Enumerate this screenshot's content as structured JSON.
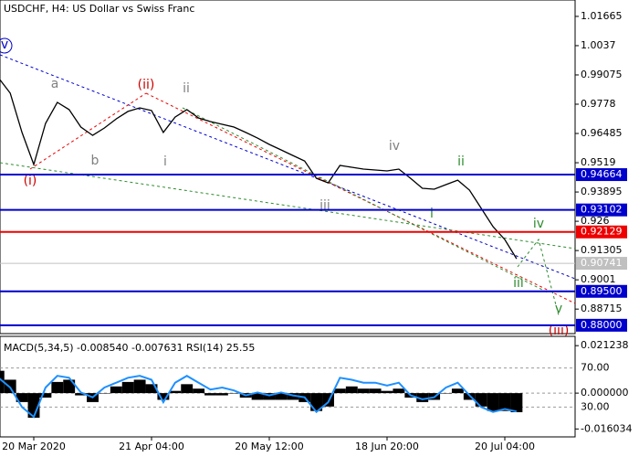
{
  "header": "USDCHF, H4:  US Dollar vs Swiss Franc",
  "chart_data": [
    {
      "type": "line",
      "categories": [
        null,
        null,
        null,
        "20 Mar 2020",
        null,
        null,
        null,
        null,
        null,
        null,
        null,
        null,
        null,
        "21 Apr 04:00",
        null,
        null,
        null,
        null,
        null,
        null,
        null,
        null,
        null,
        "20 May 12:00",
        null,
        null,
        null,
        null,
        null,
        null,
        null,
        null,
        null,
        "18 Jun 20:00",
        null,
        null,
        null,
        null,
        null,
        null,
        null,
        null,
        null,
        "20 Jul 04:00",
        null
      ],
      "values": [
        0.9895,
        0.9827,
        0.9653,
        0.9511,
        0.9693,
        0.9786,
        0.9754,
        0.9677,
        0.964,
        0.9673,
        0.9713,
        0.9746,
        0.9762,
        0.975,
        0.9653,
        0.9721,
        0.9754,
        0.9717,
        0.9701,
        0.9689,
        0.9677,
        0.9653,
        0.9628,
        0.96,
        0.9576,
        0.9551,
        0.9527,
        0.945,
        0.943,
        0.9507,
        0.9499,
        0.9491,
        0.9487,
        0.9483,
        0.9491,
        0.945,
        0.9406,
        0.9402,
        0.9422,
        0.9442,
        0.9398,
        0.9317,
        0.9236,
        0.9179,
        0.9094
      ],
      "color": "#000000",
      "ylim": [
        0.8763,
        1.0239
      ],
      "yticks": [
        1.01665,
        1.0037,
        0.99075,
        0.9778,
        0.96485,
        0.9519,
        0.93895,
        0.926,
        0.91305,
        0.9001,
        0.88715
      ],
      "levels": [
        {
          "value": 0.94664,
          "color": "#0000cc"
        },
        {
          "value": 0.93102,
          "color": "#0000cc"
        },
        {
          "value": 0.92129,
          "color": "#ee0000"
        },
        {
          "value": 0.90741,
          "color": "#c0c0c0"
        },
        {
          "value": 0.895,
          "label": "0.89500",
          "color": "#0000cc"
        },
        {
          "value": 0.88,
          "label": "0.88000",
          "color": "#0000cc"
        }
      ],
      "annotations": [
        {
          "text": "(i)",
          "color": "#cc0000"
        },
        {
          "text": "(ii)",
          "color": "#cc0000"
        },
        {
          "text": "(iii)",
          "color": "#cc0000"
        },
        {
          "text": "a",
          "color": "#808080"
        },
        {
          "text": "b",
          "color": "#808080"
        },
        {
          "text": "i",
          "color": "#808080"
        },
        {
          "text": "ii",
          "color": "#808080"
        },
        {
          "text": "iii",
          "color": "#808080"
        },
        {
          "text": "iv",
          "color": "#808080"
        },
        {
          "text": "i",
          "color": "#2e8b2e"
        },
        {
          "text": "ii",
          "color": "#2e8b2e"
        },
        {
          "text": "iii",
          "color": "#2e8b2e"
        },
        {
          "text": "iv",
          "color": "#2e8b2e"
        },
        {
          "text": "v",
          "color": "#2e8b2e"
        },
        {
          "text": "v",
          "color": "#0000cc"
        }
      ]
    },
    {
      "type": "macd",
      "title": "MACD(5,34,5) -0.008540 -0.007631 RSI(14) 25.55",
      "series": [
        {
          "color": "#000000",
          "values": [
            0.01,
            0.006,
            -0.004,
            -0.011,
            -0.002,
            0.005,
            0.006,
            -0.001,
            -0.004,
            0.0,
            0.003,
            0.005,
            0.006,
            0.004,
            -0.003,
            0.001,
            0.004,
            0.002,
            -0.001,
            -0.001,
            0.0,
            -0.002,
            -0.003,
            -0.003,
            -0.003,
            -0.003,
            -0.004,
            -0.008,
            -0.006,
            0.002,
            0.003,
            0.002,
            0.002,
            0.001,
            0.002,
            -0.002,
            -0.004,
            -0.003,
            0.0,
            0.002,
            -0.003,
            -0.006,
            -0.008,
            -0.008,
            -0.00854
          ]
        },
        {
          "color": "#1e90ff",
          "axis": "y2",
          "values": [
            60,
            50,
            30,
            20,
            50,
            62,
            60,
            45,
            40,
            50,
            55,
            60,
            62,
            58,
            35,
            55,
            62,
            55,
            48,
            50,
            47,
            42,
            45,
            42,
            45,
            42,
            40,
            25,
            35,
            60,
            58,
            55,
            55,
            52,
            55,
            42,
            38,
            40,
            50,
            55,
            42,
            30,
            25,
            28,
            25.55
          ]
        }
      ],
      "ylim": [
        -0.01958,
        0.0254
      ],
      "yticks": [
        0.021238,
        {
          "value": 0,
          "label": "0.000000"
        },
        -0.016034
      ],
      "y2lim": [
        -0.5,
        102.4
      ],
      "y2ticks": [
        {
          "value": 70,
          "label": "70.00"
        },
        {
          "value": 30,
          "label": "30.00"
        }
      ]
    }
  ]
}
